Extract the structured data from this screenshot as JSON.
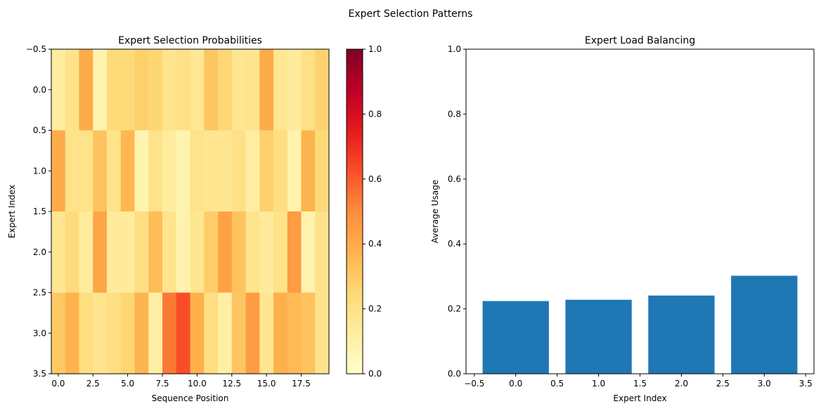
{
  "figure": {
    "title": "Expert Selection Patterns"
  },
  "chart_data": [
    {
      "type": "heatmap",
      "title": "Expert Selection Probabilities",
      "xlabel": "Sequence Position",
      "ylabel": "Expert Index",
      "xlim": [
        -0.5,
        19.5
      ],
      "ylim": [
        3.5,
        -0.5
      ],
      "x_ticks": [
        "0.0",
        "2.5",
        "5.0",
        "7.5",
        "10.0",
        "12.5",
        "15.0",
        "17.5"
      ],
      "y_ticks": [
        "−0.5",
        "0.0",
        "0.5",
        "1.0",
        "1.5",
        "2.0",
        "2.5",
        "3.0",
        "3.5"
      ],
      "colormap": "YlOrRd",
      "vmin": 0.0,
      "vmax": 1.0,
      "colorbar_ticks": [
        "0.0",
        "0.2",
        "0.4",
        "0.6",
        "0.8",
        "1.0"
      ],
      "values": [
        [
          0.13,
          0.19,
          0.4,
          0.08,
          0.24,
          0.24,
          0.28,
          0.26,
          0.18,
          0.2,
          0.16,
          0.31,
          0.26,
          0.17,
          0.18,
          0.4,
          0.17,
          0.14,
          0.2,
          0.27
        ],
        [
          0.4,
          0.19,
          0.19,
          0.32,
          0.19,
          0.36,
          0.08,
          0.19,
          0.13,
          0.08,
          0.19,
          0.17,
          0.17,
          0.2,
          0.12,
          0.28,
          0.22,
          0.09,
          0.37,
          0.24
        ],
        [
          0.17,
          0.23,
          0.13,
          0.42,
          0.14,
          0.14,
          0.21,
          0.34,
          0.18,
          0.09,
          0.17,
          0.29,
          0.43,
          0.32,
          0.18,
          0.14,
          0.19,
          0.45,
          0.09,
          0.19
        ],
        [
          0.3,
          0.37,
          0.22,
          0.18,
          0.21,
          0.26,
          0.37,
          0.11,
          0.54,
          0.63,
          0.38,
          0.22,
          0.11,
          0.31,
          0.45,
          0.17,
          0.38,
          0.35,
          0.32,
          0.19
        ]
      ]
    },
    {
      "type": "bar",
      "title": "Expert Load Balancing",
      "xlabel": "Expert Index",
      "ylabel": "Average Usage",
      "categories": [
        0,
        1,
        2,
        3
      ],
      "values": [
        0.224,
        0.228,
        0.241,
        0.302
      ],
      "xlim": [
        -0.6,
        3.6
      ],
      "ylim": [
        0,
        1.0
      ],
      "x_ticks": [
        "−0.5",
        "0.0",
        "0.5",
        "1.0",
        "1.5",
        "2.0",
        "2.5",
        "3.0",
        "3.5"
      ],
      "y_ticks": [
        "0.0",
        "0.2",
        "0.4",
        "0.6",
        "0.8",
        "1.0"
      ],
      "bar_color": "#1f77b4"
    }
  ]
}
